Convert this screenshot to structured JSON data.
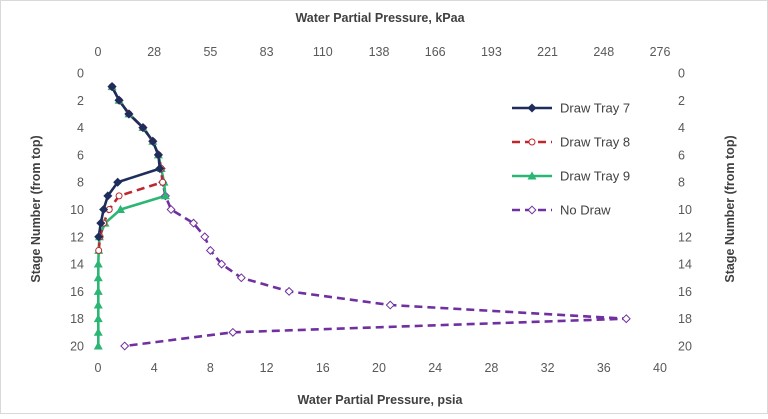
{
  "chart_data": {
    "type": "line",
    "title": "",
    "xlabel": "Water Partial Pressure, psia",
    "x2label": "Water Partial Pressure, kPaa",
    "ylabel": "Stage Number (from top)",
    "y2label": "Stage Number (from top)",
    "xlim": [
      0,
      40
    ],
    "x2lim": [
      0,
      276
    ],
    "ylim": [
      0,
      20
    ],
    "y_inverted": true,
    "x_ticks": [
      "0",
      "4",
      "8",
      "12",
      "16",
      "20",
      "24",
      "28",
      "32",
      "36",
      "40"
    ],
    "x2_ticks": [
      "0",
      "28",
      "55",
      "83",
      "110",
      "138",
      "166",
      "193",
      "221",
      "248",
      "276"
    ],
    "y_ticks": [
      "0",
      "2",
      "4",
      "6",
      "8",
      "10",
      "12",
      "14",
      "16",
      "18",
      "20"
    ],
    "grid": false,
    "legend_position": "right",
    "series": [
      {
        "name": "Draw Tray 7",
        "color": "#1f2d5c",
        "dash": "solid",
        "marker": "diamond-filled",
        "x": [
          1.0,
          1.5,
          2.2,
          3.2,
          3.9,
          4.3,
          4.4,
          1.4,
          0.7,
          0.4,
          0.2,
          0.05
        ],
        "y": [
          1,
          2,
          3,
          4,
          5,
          6,
          7,
          8,
          9,
          10,
          11,
          12
        ]
      },
      {
        "name": "Draw Tray 8",
        "color": "#c0272d",
        "dash": "dashed",
        "marker": "circle-open",
        "x": [
          1.0,
          1.5,
          2.2,
          3.2,
          3.9,
          4.3,
          4.5,
          4.6,
          1.5,
          0.8,
          0.4,
          0.15,
          0.05
        ],
        "y": [
          1,
          2,
          3,
          4,
          5,
          6,
          7,
          8,
          9,
          10,
          11,
          12,
          13
        ]
      },
      {
        "name": "Draw Tray 9",
        "color": "#2bb673",
        "dash": "solid",
        "marker": "triangle-filled",
        "x": [
          1.0,
          1.5,
          2.2,
          3.2,
          3.9,
          4.3,
          4.5,
          4.7,
          4.8,
          1.6,
          0.5,
          0.1,
          0.05,
          0.02,
          0.02,
          0.02,
          0.02,
          0.02,
          0.02,
          0.02
        ],
        "y": [
          1,
          2,
          3,
          4,
          5,
          6,
          7,
          8,
          9,
          10,
          11,
          12,
          13,
          14,
          15,
          16,
          17,
          18,
          19,
          20
        ]
      },
      {
        "name": "No Draw",
        "color": "#7030a0",
        "dash": "dashed",
        "marker": "diamond-open",
        "x": [
          1.0,
          1.5,
          2.2,
          3.2,
          3.9,
          4.3,
          4.5,
          4.6,
          4.8,
          5.2,
          6.8,
          7.6,
          8.0,
          8.8,
          10.2,
          13.6,
          20.8,
          37.6,
          9.6,
          1.9
        ],
        "y": [
          1,
          2,
          3,
          4,
          5,
          6,
          7,
          8,
          9,
          10,
          11,
          12,
          13,
          14,
          15,
          16,
          17,
          18,
          19,
          20
        ]
      }
    ]
  }
}
